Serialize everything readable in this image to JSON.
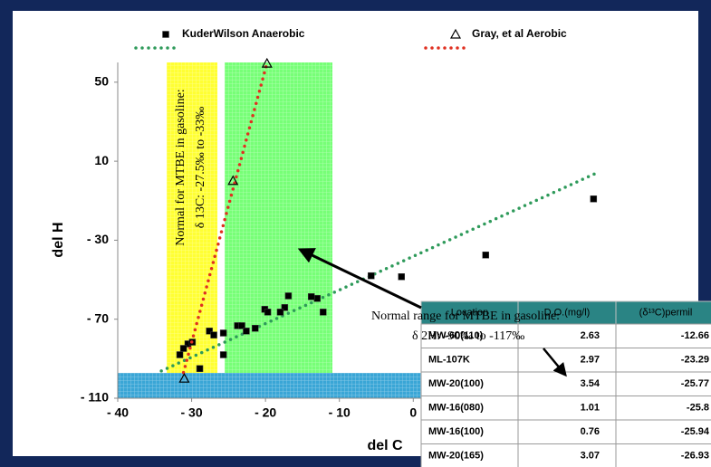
{
  "chart_data": {
    "type": "scatter",
    "x_label": "del C",
    "y_label": "del H",
    "xlim": [
      -40,
      30
    ],
    "ylim": [
      -110,
      60
    ],
    "xticks": [
      {
        "value": -40,
        "label": "- 40"
      },
      {
        "value": -30,
        "label": "- 30"
      },
      {
        "value": -20,
        "label": "- 20"
      },
      {
        "value": -10,
        "label": "- 10"
      },
      0
    ],
    "yticks": [
      50,
      10,
      {
        "value": -30,
        "label": "- 30"
      },
      {
        "value": -70,
        "label": "- 70"
      },
      {
        "value": -110,
        "label": "- 110"
      }
    ],
    "series": [
      {
        "name": "KuderWilson Anaerobic",
        "color": "#000000",
        "marker": "square",
        "trend_color": "#2e9a5a",
        "x": [
          24.4,
          9.8,
          -1.6,
          -5.7,
          -12.2,
          -13.0,
          -13.8,
          -17.4,
          -16.9,
          -18.0,
          -20.1,
          -19.7,
          -23.8,
          -23.2,
          -22.6,
          -21.4,
          -25.7,
          -25.7,
          -27.6,
          -27.0,
          -30.5,
          -31.1,
          -29.9,
          -28.9,
          -31.6
        ],
        "y": [
          -9.1,
          -37.5,
          -48.5,
          -48.0,
          -66.4,
          -59.5,
          -58.6,
          -64.1,
          -58.2,
          -66.4,
          -65.0,
          -66.4,
          -73.3,
          -73.3,
          -76.0,
          -74.6,
          -77.0,
          -88.0,
          -76.0,
          -78.0,
          -82.5,
          -84.8,
          -81.6,
          -95.0,
          -88.0
        ],
        "trend_x": [
          -34.1,
          25.2
        ],
        "trend_y": [
          -96.2,
          4.7
        ]
      },
      {
        "name": "Gray, et al Aerobic",
        "color": "#000000",
        "marker": "triangle",
        "trend_color": "#e03020",
        "x": [
          -19.8,
          -24.4,
          -31.0
        ],
        "y": [
          59.5,
          0.1,
          -100.0
        ],
        "trend_x": [
          -31.1,
          -19.8
        ],
        "trend_y": [
          -97.0,
          59.7
        ]
      }
    ],
    "annotations": [
      "Normal for MTBE in gasoline:",
      "δ 13C: -27.5‰ to -33‰",
      "Normal range for MTBE in gasoline:",
      "δ 2H: -90‰ to -117‰"
    ]
  },
  "table": {
    "header": [
      "Location",
      "D.O.(mg/l)",
      "(δ¹³C)permil"
    ],
    "rows": [
      [
        "MW-60(110)",
        2.63,
        -12.66
      ],
      [
        "ML-107K",
        2.97,
        -23.29
      ],
      [
        "MW-20(100)",
        3.54,
        -25.77
      ],
      [
        "MW-16(080)",
        1.01,
        -25.8
      ],
      [
        "MW-16(100)",
        0.76,
        -25.94
      ],
      [
        "MW-20(165)",
        3.07,
        -26.93
      ]
    ]
  }
}
